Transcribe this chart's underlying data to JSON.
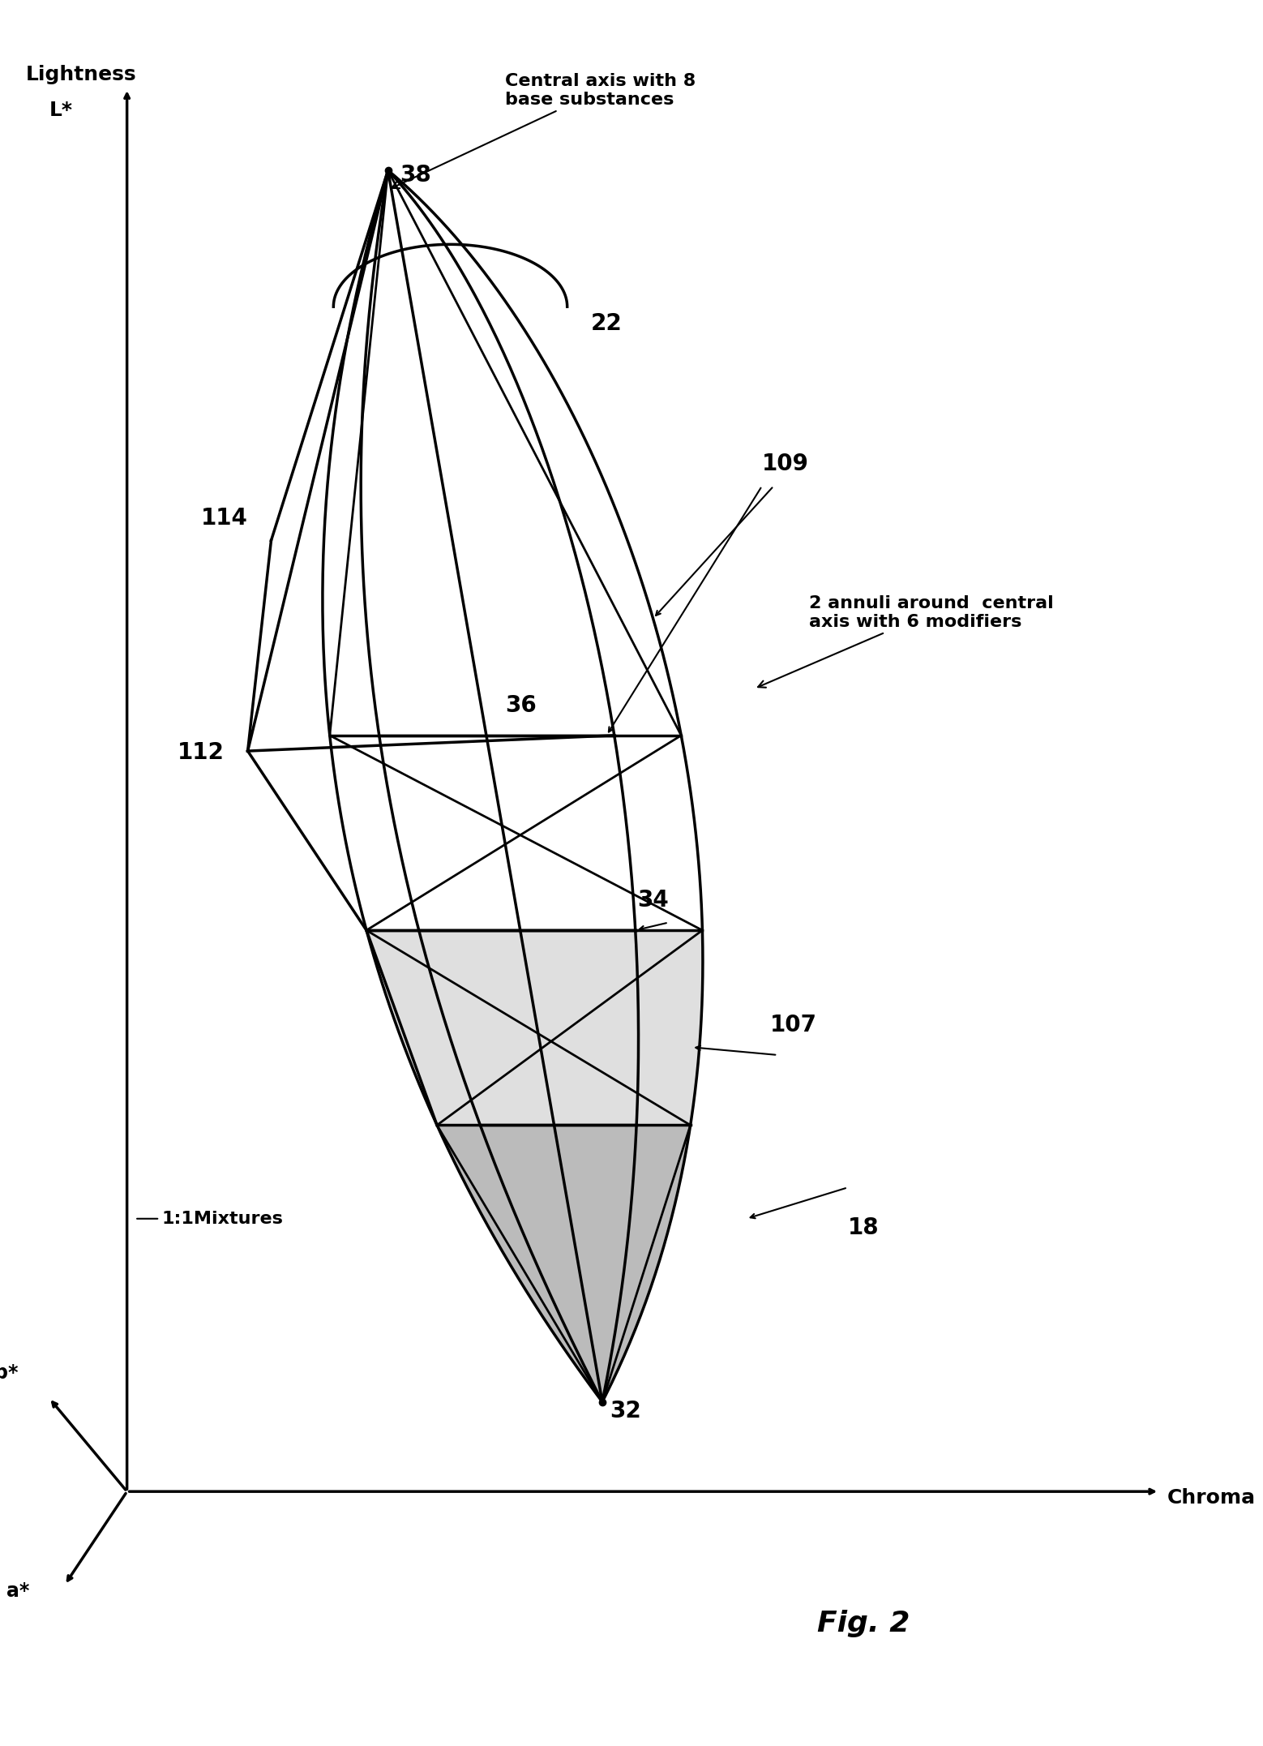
{
  "title": "Fig. 2",
  "bg_color": "#ffffff",
  "labels": {
    "lightness": "Lightness",
    "L_star": "L*",
    "b_star": "b*",
    "a_star": "a*",
    "chroma": "Chroma",
    "central_axis": "Central axis with 8\nbase substances",
    "annuli": "2 annuli around  central\naxis with 6 modifiers",
    "mixtures": "1:1Mixtures"
  },
  "numbers": [
    "38",
    "22",
    "109",
    "36",
    "34",
    "107",
    "18",
    "32",
    "114",
    "112"
  ],
  "arrow_color": "#000000",
  "line_color": "#000000",
  "shade_colors": [
    "#cccccc",
    "#aaaaaa",
    "#888888",
    "#666666"
  ]
}
